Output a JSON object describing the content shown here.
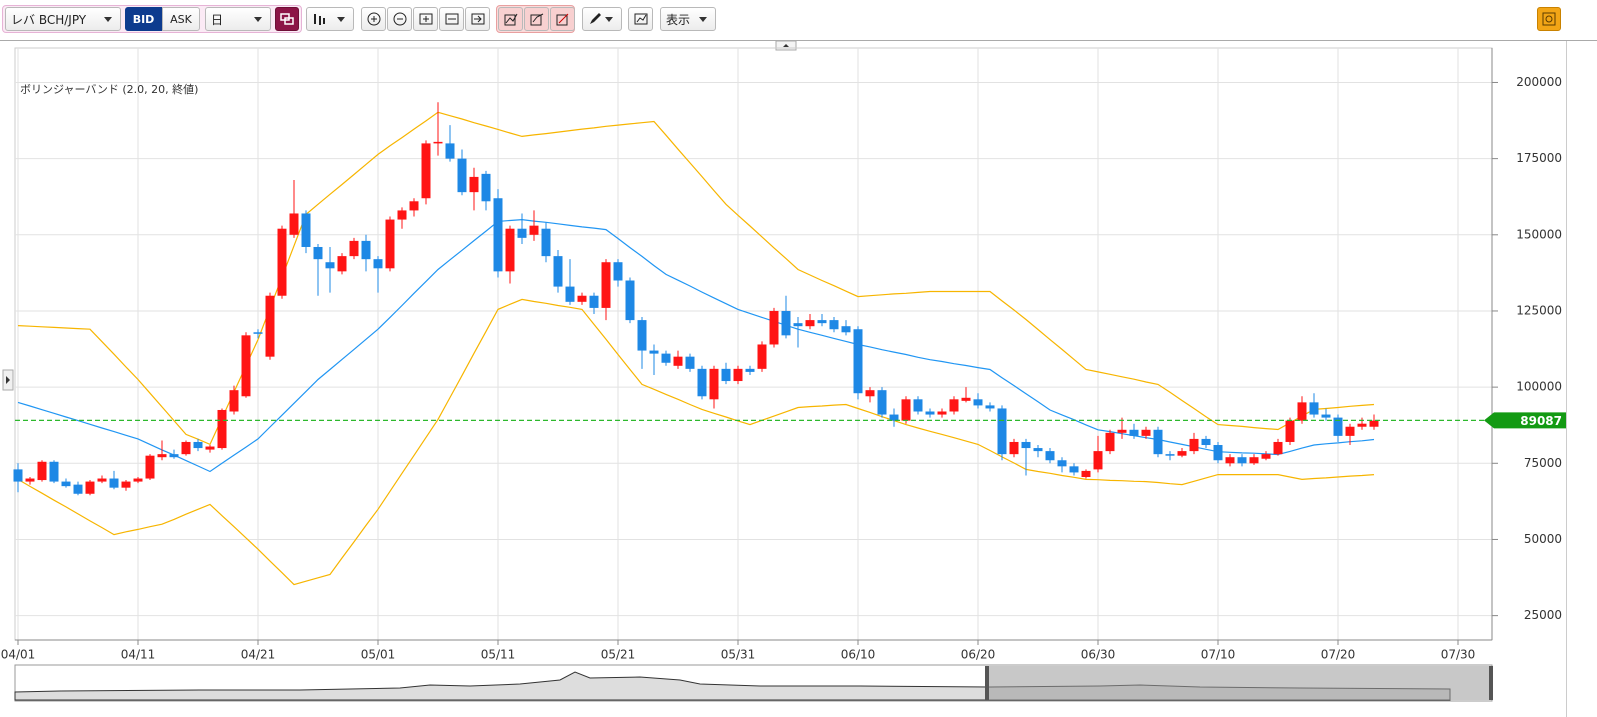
{
  "toolbar": {
    "symbol": "レバ BCH/JPY",
    "bid": "BID",
    "ask": "ASK",
    "period": "日",
    "view": "表示"
  },
  "chart_data": {
    "type": "candlestick",
    "categories": [
      "04/01",
      null,
      null,
      null,
      null,
      null,
      null,
      null,
      null,
      null,
      "04/11",
      null,
      null,
      null,
      null,
      null,
      null,
      null,
      null,
      null,
      "04/21",
      null,
      null,
      null,
      null,
      null,
      null,
      null,
      null,
      null,
      "05/01",
      null,
      null,
      null,
      null,
      null,
      null,
      null,
      null,
      null,
      "05/11",
      null,
      null,
      null,
      null,
      null,
      null,
      null,
      null,
      null,
      "05/21",
      null,
      null,
      null,
      null,
      null,
      null,
      null,
      null,
      null,
      "05/31",
      null,
      null,
      null,
      null,
      null,
      null,
      null,
      null,
      null,
      "06/10",
      null,
      null,
      null,
      null,
      null,
      null,
      null,
      null,
      null,
      "06/20",
      null,
      null,
      null,
      null,
      null,
      null,
      null,
      null,
      null,
      "06/30",
      null,
      null,
      null,
      null,
      null,
      null,
      null,
      null,
      null,
      "07/10",
      null,
      null,
      null,
      null,
      null,
      null,
      null,
      null,
      null,
      "07/20",
      null,
      null,
      null,
      null,
      null,
      null,
      null,
      null,
      null,
      "07/30"
    ],
    "open": [
      73000,
      69000,
      69500,
      75500,
      69000,
      68000,
      65000,
      69000,
      70000,
      67000,
      69000,
      70000,
      77000,
      78000,
      78000,
      82000,
      79500,
      80000,
      92000,
      97000,
      118000,
      110000,
      130000,
      150000,
      157000,
      146000,
      141000,
      138000,
      143000,
      148000,
      142000,
      139000,
      155000,
      158000,
      162000,
      180000,
      180000,
      175000,
      164000,
      170000,
      162000,
      138000,
      152000,
      150000,
      152000,
      143000,
      133000,
      128000,
      130000,
      126000,
      141000,
      135000,
      122000,
      112000,
      111000,
      107000,
      110000,
      106000,
      96000,
      106000,
      102000,
      106000,
      106000,
      114000,
      125000,
      121000,
      120000,
      122000,
      122000,
      120000,
      119000,
      97000,
      99000,
      91000,
      89000,
      96000,
      92000,
      91000,
      92000,
      95500,
      96000,
      94000,
      93000,
      78000,
      82000,
      80000,
      79000,
      76000,
      74000,
      70500,
      73000,
      79000,
      85000,
      86000,
      84000,
      86000,
      78000,
      77500,
      79000,
      83000,
      81000,
      75000,
      77000,
      75000,
      76500,
      78000,
      82000,
      89000,
      95000,
      91000,
      90000,
      84000,
      87000,
      87000,
      null,
      null,
      null,
      null,
      null,
      null,
      null
    ],
    "high": [
      75000,
      70500,
      76000,
      76000,
      70000,
      69000,
      69500,
      71000,
      72500,
      69500,
      70500,
      78000,
      82500,
      79500,
      82500,
      83000,
      81000,
      93000,
      100500,
      118000,
      119000,
      131000,
      153000,
      168000,
      158000,
      147000,
      146000,
      144000,
      149000,
      150000,
      143000,
      156000,
      159000,
      162000,
      181000,
      193500,
      186000,
      178000,
      172000,
      171000,
      165000,
      153000,
      157000,
      158000,
      154000,
      145000,
      142000,
      131000,
      131000,
      142000,
      142000,
      136000,
      123000,
      114000,
      112000,
      112000,
      111000,
      107000,
      107000,
      108000,
      107000,
      107000,
      115000,
      126000,
      130000,
      123000,
      124000,
      124000,
      123000,
      122000,
      120000,
      100000,
      100000,
      93000,
      97000,
      97000,
      93000,
      93000,
      97000,
      100000,
      98000,
      95000,
      94000,
      83000,
      83000,
      81000,
      80000,
      77000,
      75000,
      73000,
      84000,
      86000,
      90000,
      88000,
      87000,
      87000,
      79000,
      80000,
      85000,
      84000,
      82000,
      78000,
      78000,
      78000,
      79000,
      83000,
      90000,
      97000,
      98000,
      93000,
      91000,
      88000,
      90000,
      91000,
      null,
      null,
      null,
      null,
      null,
      null,
      null
    ],
    "low": [
      65500,
      68000,
      69000,
      68500,
      67000,
      64500,
      64500,
      68500,
      66500,
      66000,
      68500,
      69500,
      76000,
      76500,
      77500,
      79000,
      78500,
      79500,
      91000,
      96500,
      116000,
      109000,
      129000,
      149000,
      144000,
      130000,
      131000,
      137000,
      142000,
      138000,
      131000,
      138000,
      152000,
      156000,
      160000,
      176000,
      174000,
      163000,
      158000,
      158000,
      136000,
      134000,
      147000,
      148000,
      141000,
      131000,
      127000,
      127000,
      124000,
      122000,
      133000,
      121000,
      106000,
      104000,
      107000,
      106000,
      105000,
      96000,
      93000,
      101000,
      101000,
      104000,
      105000,
      113000,
      116000,
      113000,
      119000,
      120000,
      118000,
      117000,
      96000,
      95000,
      90000,
      87000,
      88000,
      91000,
      90000,
      90000,
      91000,
      95000,
      93000,
      92000,
      76000,
      77000,
      71000,
      77000,
      75000,
      72000,
      71000,
      70000,
      72000,
      78000,
      83000,
      83000,
      83000,
      77000,
      76000,
      77000,
      78000,
      80000,
      75000,
      74000,
      74000,
      74500,
      76000,
      77500,
      81000,
      88000,
      90000,
      89000,
      82000,
      81000,
      86000,
      86000,
      null,
      null,
      null,
      null,
      null,
      null,
      null
    ],
    "close": [
      69000,
      70000,
      75500,
      69000,
      67500,
      65000,
      69000,
      70000,
      67000,
      69000,
      70000,
      77500,
      78000,
      77000,
      82000,
      80000,
      80500,
      92500,
      99000,
      117000,
      117500,
      130000,
      152000,
      157000,
      146000,
      142000,
      139000,
      143000,
      148000,
      142000,
      139000,
      155000,
      158000,
      161000,
      180000,
      180500,
      175000,
      164000,
      169000,
      161000,
      138000,
      152000,
      149000,
      153000,
      143000,
      133000,
      128000,
      130000,
      126000,
      141000,
      135000,
      122000,
      112000,
      111000,
      108000,
      110000,
      106000,
      97000,
      106000,
      102000,
      106000,
      105000,
      114000,
      125000,
      117000,
      120000,
      122000,
      121000,
      119000,
      118000,
      98000,
      99000,
      91000,
      89000,
      96000,
      92000,
      91000,
      92000,
      96000,
      96500,
      94000,
      93000,
      78000,
      82000,
      80000,
      79000,
      76000,
      74000,
      72000,
      72500,
      79000,
      85000,
      86000,
      84000,
      86000,
      78000,
      77500,
      79000,
      83000,
      81000,
      76000,
      77000,
      75000,
      77000,
      78000,
      82000,
      89000,
      95000,
      91000,
      90000,
      84000,
      87000,
      88000,
      89000,
      null,
      null,
      null,
      null,
      null,
      null,
      null
    ],
    "up_color": "#ff1414",
    "down_color": "#1e88e5",
    "indicator": {
      "name": "ボリンジャーバンド (2.0, 20, 終値)",
      "color": "#f7b500",
      "middle_color": "#2196f3",
      "upper": [
        120200,
        120000,
        119800,
        119600,
        119400,
        119200,
        119000,
        114900,
        110800,
        106600,
        102500,
        98000,
        93500,
        89000,
        84500,
        82900,
        81200,
        89800,
        98400,
        107000,
        115600,
        125900,
        136100,
        146400,
        156700,
        160000,
        163300,
        166500,
        169800,
        173100,
        176400,
        179200,
        181900,
        184700,
        187400,
        190200,
        189100,
        188000,
        186800,
        185700,
        184600,
        183400,
        182300,
        182800,
        183200,
        183700,
        184200,
        184700,
        185100,
        185600,
        186000,
        186400,
        186800,
        187200,
        182700,
        178100,
        173600,
        169100,
        164500,
        160000,
        156400,
        152900,
        149300,
        145700,
        142200,
        138600,
        136800,
        135000,
        133300,
        131500,
        129700,
        130000,
        130300,
        130600,
        130800,
        131100,
        131400,
        131400,
        131400,
        131400,
        131400,
        131400,
        128300,
        125300,
        122200,
        118900,
        115600,
        112400,
        109100,
        105800,
        105000,
        104200,
        103400,
        102600,
        101700,
        100900,
        98300,
        95600,
        93000,
        90300,
        87700,
        87400,
        87100,
        86700,
        86400,
        86100,
        88300,
        90500,
        92700,
        93000,
        93300,
        93700,
        94000,
        94300,
        null,
        null,
        null,
        null,
        null,
        null,
        null
      ],
      "middle": [
        95000,
        93800,
        92600,
        91400,
        90200,
        89000,
        87800,
        86600,
        85400,
        84200,
        83000,
        81200,
        79400,
        77700,
        75900,
        74100,
        72300,
        75000,
        77700,
        80300,
        83000,
        86900,
        90800,
        94700,
        98600,
        102500,
        105800,
        109100,
        112400,
        115700,
        119000,
        122900,
        126800,
        130800,
        134700,
        138600,
        141800,
        144900,
        148100,
        151200,
        154400,
        154700,
        155000,
        154500,
        154100,
        153600,
        153100,
        152600,
        152200,
        151700,
        148800,
        145800,
        142900,
        139900,
        137000,
        135100,
        133200,
        131200,
        129300,
        127400,
        125500,
        124200,
        122900,
        121600,
        120300,
        119000,
        118000,
        117000,
        116000,
        115000,
        114000,
        113200,
        112300,
        111500,
        110700,
        109800,
        109000,
        108400,
        107700,
        107100,
        106400,
        105800,
        103100,
        100500,
        97800,
        95200,
        92500,
        90900,
        89300,
        87600,
        86000,
        85400,
        84700,
        84100,
        83400,
        82800,
        82000,
        81200,
        80400,
        79600,
        78800,
        78600,
        78400,
        78300,
        78100,
        77900,
        78900,
        80000,
        81000,
        81400,
        81700,
        82100,
        82400,
        82800,
        null,
        null,
        null,
        null,
        null,
        null,
        null
      ],
      "lower": [
        69700,
        67400,
        65200,
        62900,
        60700,
        58400,
        56100,
        53900,
        51600,
        52500,
        53300,
        54200,
        55000,
        56600,
        58300,
        59900,
        61500,
        57800,
        54200,
        50500,
        46800,
        42900,
        39100,
        35200,
        36300,
        37400,
        38500,
        43900,
        49200,
        54600,
        59900,
        65800,
        71700,
        77600,
        83500,
        89400,
        96600,
        103800,
        111100,
        118300,
        125500,
        127200,
        128800,
        128100,
        127500,
        126800,
        126200,
        125500,
        120600,
        115700,
        110700,
        105800,
        100900,
        99300,
        97600,
        96000,
        94300,
        92700,
        91400,
        90200,
        88900,
        87700,
        89100,
        90500,
        91900,
        93300,
        93600,
        93800,
        94100,
        94300,
        93000,
        91700,
        90300,
        89000,
        87700,
        86600,
        85500,
        84500,
        83400,
        82300,
        81200,
        79200,
        77100,
        75100,
        73000,
        72300,
        71700,
        71000,
        70400,
        69700,
        69600,
        69400,
        69300,
        69100,
        69000,
        68700,
        68300,
        68000,
        69100,
        70200,
        71300,
        71300,
        71300,
        71300,
        71300,
        71300,
        70500,
        69700,
        70000,
        70200,
        70500,
        70800,
        71000,
        71300,
        null,
        null,
        null,
        null,
        null,
        null,
        null
      ]
    },
    "price_line": {
      "value": 89087,
      "color": "#2db82d",
      "label_color": "#139a13"
    },
    "ylim": [
      17000,
      210000
    ],
    "yticks": [
      25000,
      50000,
      75000,
      100000,
      125000,
      150000,
      175000,
      200000
    ],
    "grid": true
  }
}
